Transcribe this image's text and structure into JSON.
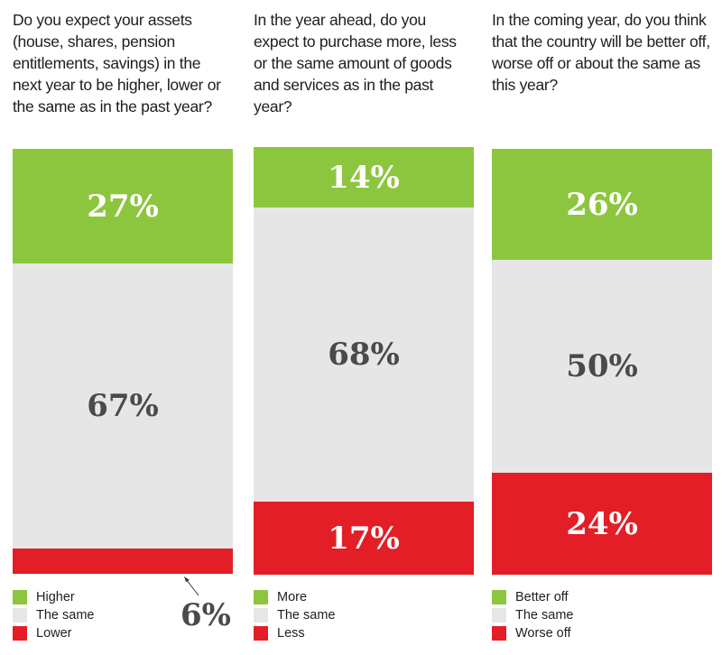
{
  "colors": {
    "green": "#8cc63f",
    "gray": "#e6e6e6",
    "red": "#e31e26"
  },
  "chart_data": [
    {
      "type": "bar",
      "stacked": true,
      "title": "Do you expect your assets (house, shares, pension entitlements, savings) in the next year to be higher, lower or the same as in the past year?",
      "series": [
        {
          "name": "Higher",
          "value": 27,
          "label": "27%",
          "color": "green"
        },
        {
          "name": "The same",
          "value": 67,
          "label": "67%",
          "color": "gray"
        },
        {
          "name": "Lower",
          "value": 6,
          "label": "6%",
          "color": "red"
        }
      ]
    },
    {
      "type": "bar",
      "stacked": true,
      "title": "In the year ahead, do you expect to purchase more, less or the same amount of goods and services as in the past year?",
      "series": [
        {
          "name": "More",
          "value": 14,
          "label": "14%",
          "color": "green"
        },
        {
          "name": "The same",
          "value": 68,
          "label": "68%",
          "color": "gray"
        },
        {
          "name": "Less",
          "value": 17,
          "label": "17%",
          "color": "red"
        }
      ]
    },
    {
      "type": "bar",
      "stacked": true,
      "title": "In the coming year, do you think that the country will be better off, worse off or about the same as this year?",
      "series": [
        {
          "name": "Better off",
          "value": 26,
          "label": "26%",
          "color": "green"
        },
        {
          "name": "The same",
          "value": 50,
          "label": "50%",
          "color": "gray"
        },
        {
          "name": "Worse off",
          "value": 24,
          "label": "24%",
          "color": "red"
        }
      ]
    }
  ]
}
